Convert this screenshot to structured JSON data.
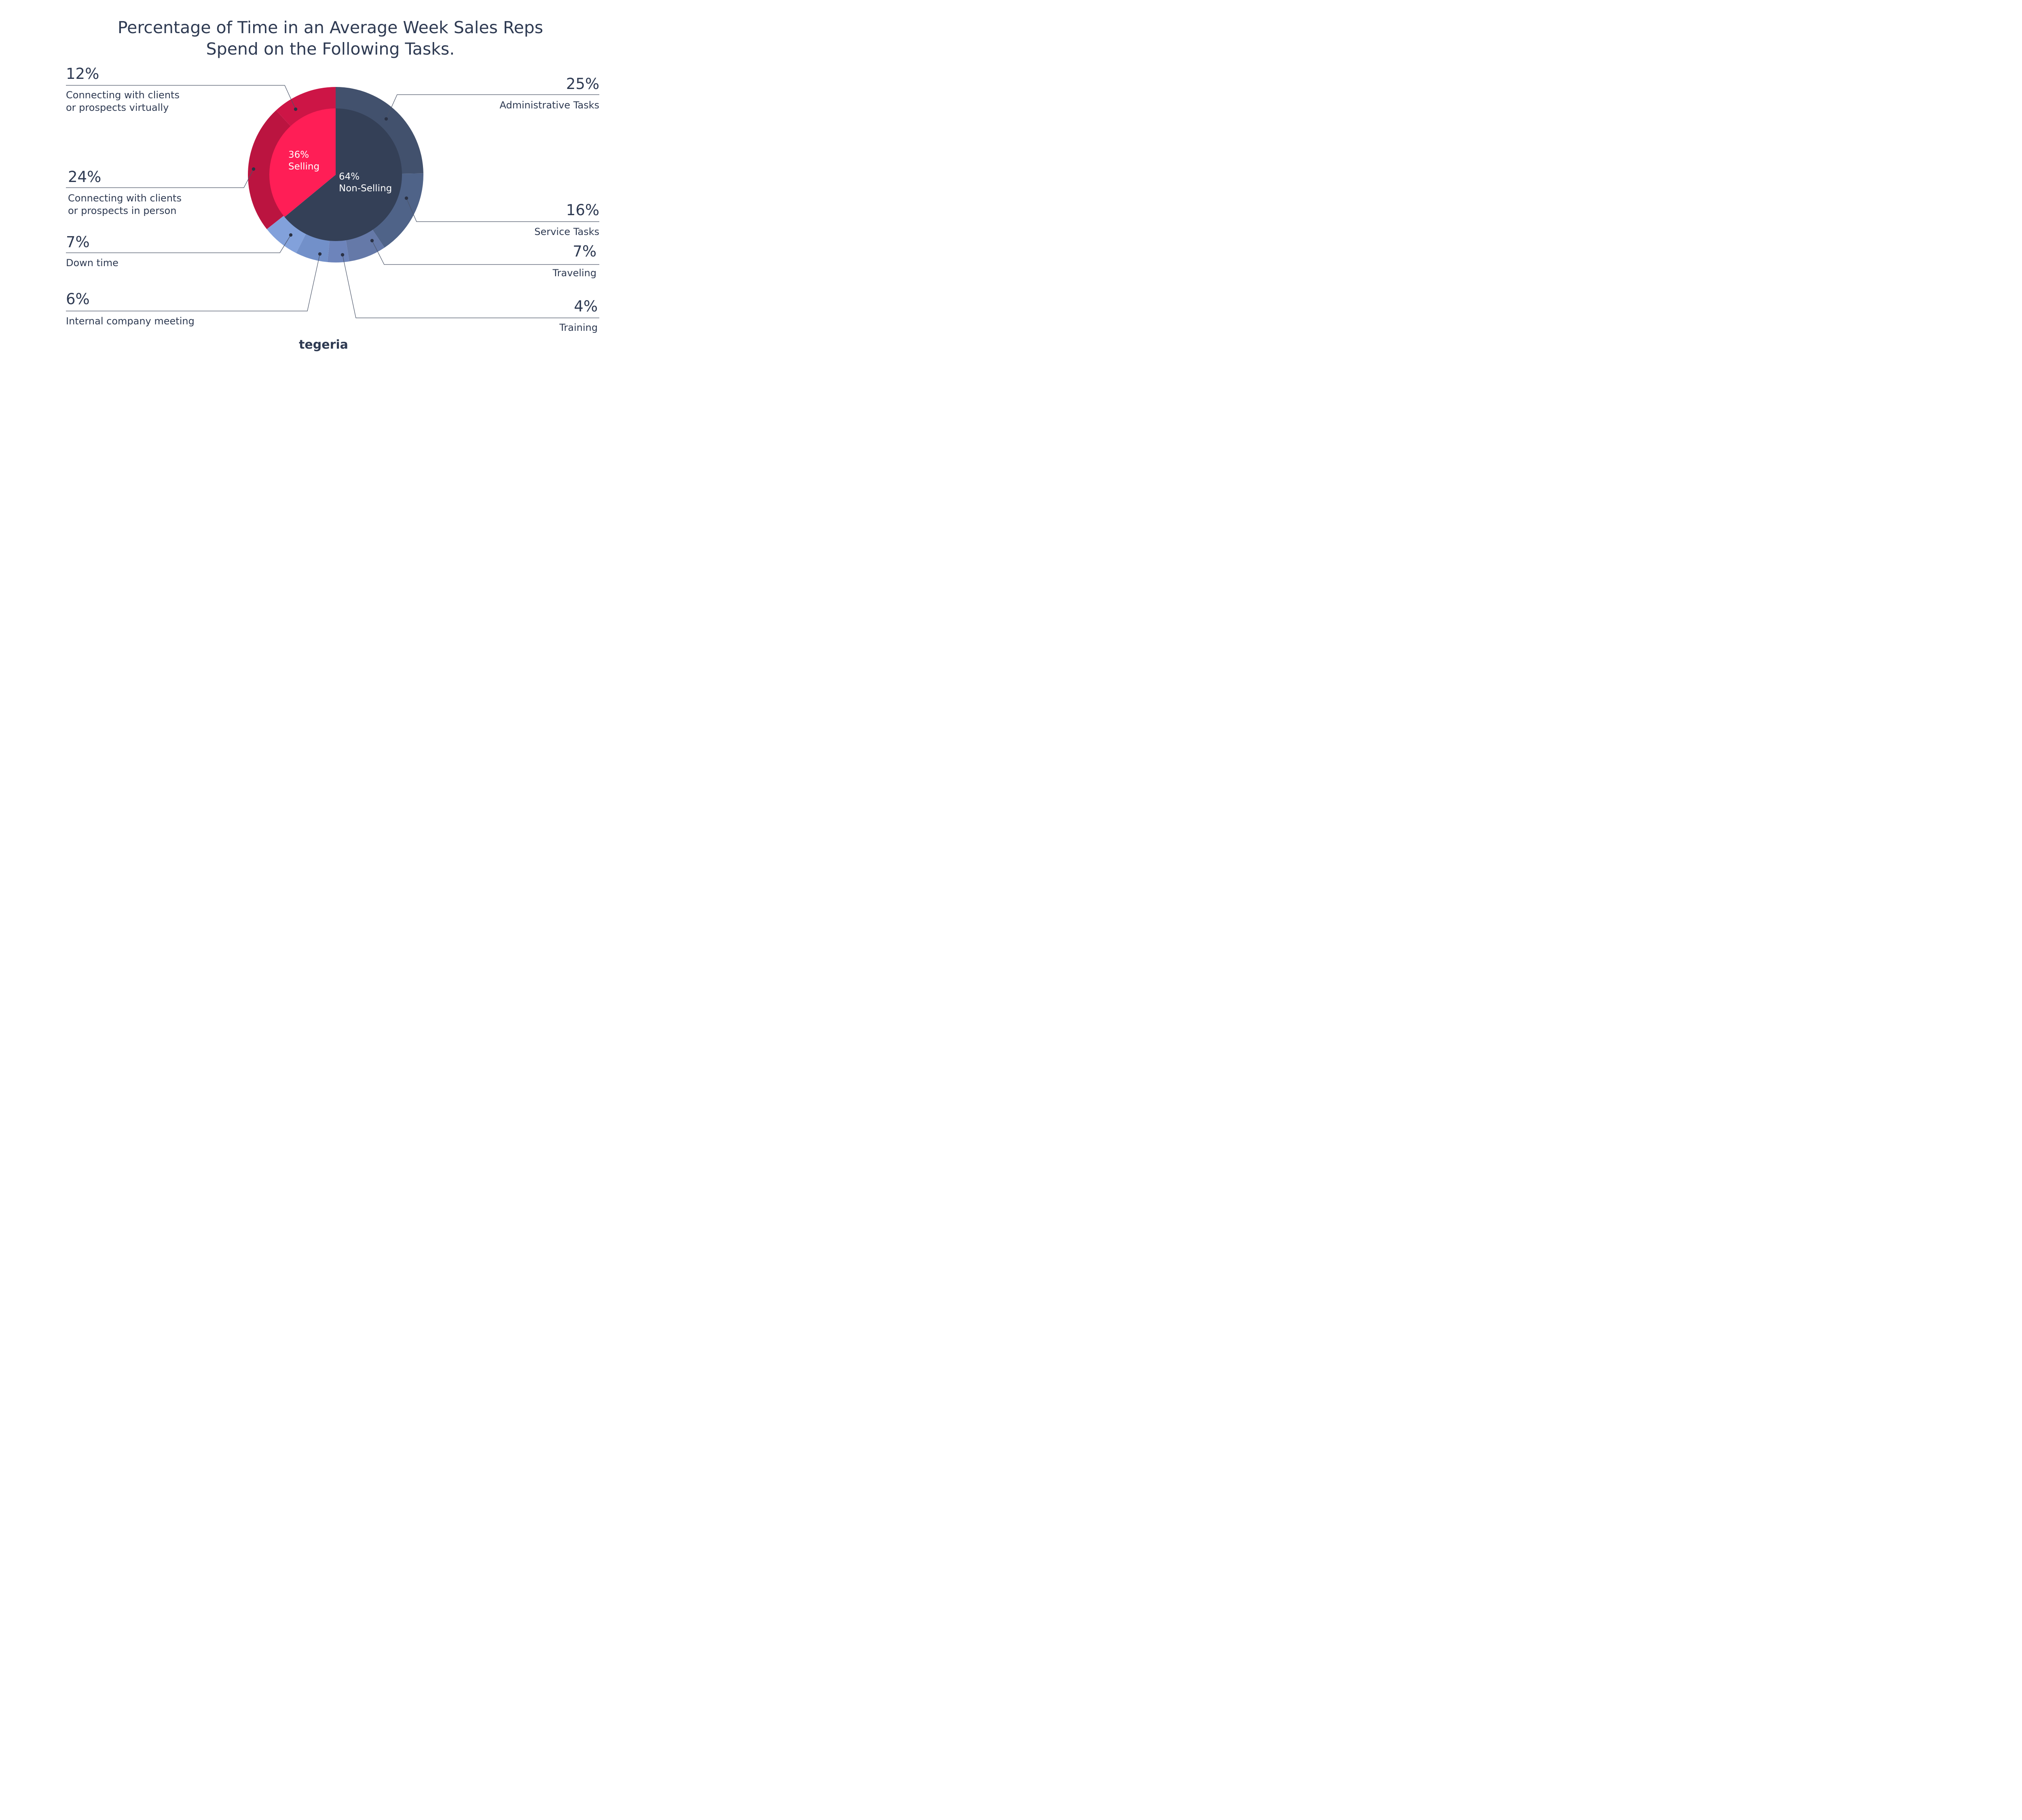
{
  "chart_data": {
    "type": "pie",
    "title_lines": [
      "Percentage of Time in an Average Week Sales Reps",
      "Spend on the Following Tasks."
    ],
    "inner": [
      {
        "pct": "36%",
        "label": "Selling",
        "value": 36,
        "color": "#ff1e56"
      },
      {
        "pct": "64%",
        "label": "Non-Selling",
        "value": 64,
        "color": "#344057"
      }
    ],
    "outer": [
      {
        "pct": "25%",
        "lines": [
          "Administrative Tasks"
        ],
        "value": 25,
        "color": "#42516d"
      },
      {
        "pct": "16%",
        "lines": [
          "Service Tasks"
        ],
        "value": 16,
        "color": "#4f6388"
      },
      {
        "pct": "7%",
        "lines": [
          "Traveling"
        ],
        "value": 7,
        "color": "#6579a8"
      },
      {
        "pct": "4%",
        "lines": [
          "Training"
        ],
        "value": 4,
        "color": "#6d84bb"
      },
      {
        "pct": "6%",
        "lines": [
          "Internal company meeting"
        ],
        "value": 6,
        "color": "#7290c9"
      },
      {
        "pct": "7%",
        "lines": [
          "Down time"
        ],
        "value": 7,
        "color": "#82a1db"
      },
      {
        "pct": "24%",
        "lines": [
          "Connecting with clients",
          "or prospects in person"
        ],
        "value": 24,
        "color": "#bb1440"
      },
      {
        "pct": "12%",
        "lines": [
          "Connecting with clients",
          "or prospects virtually"
        ],
        "value": 12,
        "color": "#cd1546"
      }
    ]
  },
  "brand": {
    "logo_text": "tegeria"
  },
  "colors": {
    "text": "#2e3a52",
    "leader": "#4a5468"
  }
}
